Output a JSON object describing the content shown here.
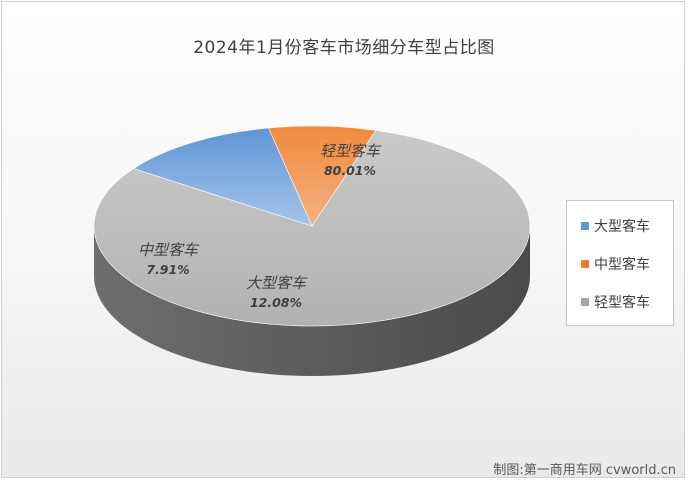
{
  "chart_data": {
    "type": "pie",
    "title": "2024年1月份客车市场细分车型占比图",
    "slices": [
      {
        "name": "轻型客车",
        "value": 80.01,
        "label": "80.01%",
        "color": "#a5a5a5"
      },
      {
        "name": "大型客车",
        "value": 12.08,
        "label": "12.08%",
        "color": "#5b9bd5"
      },
      {
        "name": "中型客车",
        "value": 7.91,
        "label": "7.91%",
        "color": "#ed7d31"
      }
    ],
    "legend_order": [
      "大型客车",
      "中型客车",
      "轻型客车"
    ],
    "legend_position": "right"
  },
  "credit": "制图:第一商用车网 cvworld.cn"
}
